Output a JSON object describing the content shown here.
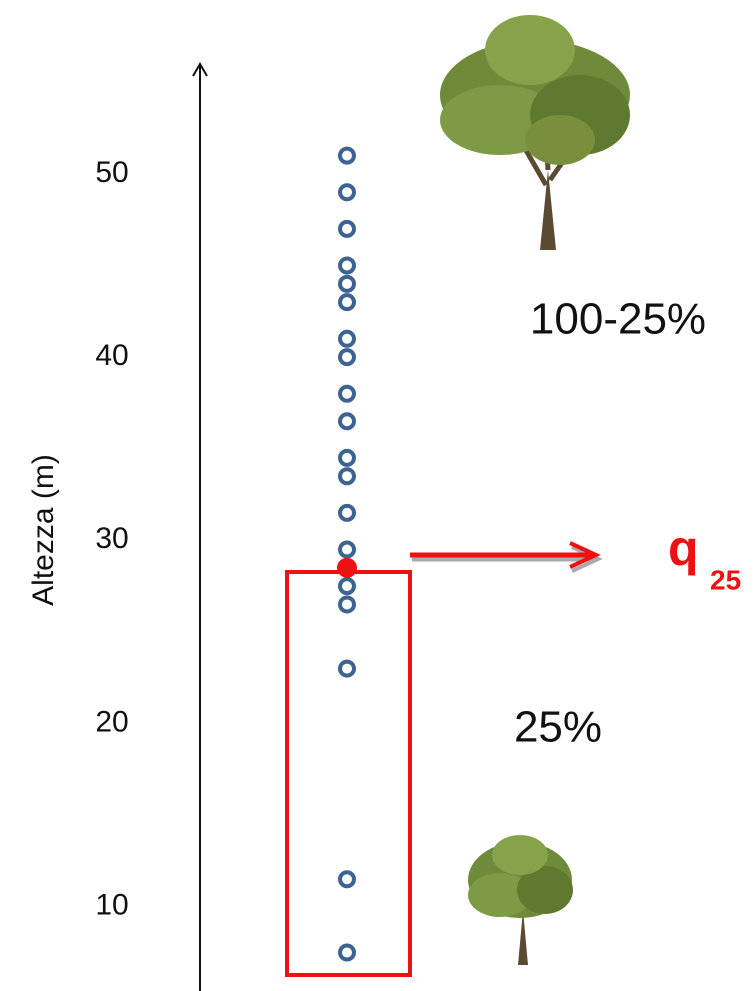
{
  "chart_data": {
    "type": "strip",
    "y_label": "Altezza (m)",
    "values": [
      51,
      49,
      47,
      45,
      44,
      43,
      41,
      40,
      38,
      36.5,
      34.5,
      33.5,
      31.5,
      29.5,
      27.5,
      26.5,
      23,
      11.5,
      7.5
    ],
    "color": "#3d6391",
    "quantile": {
      "label": "q",
      "subscript": "25",
      "value": 28.5,
      "color": "#ee1111"
    },
    "annotations": [
      "100-25%",
      "25%"
    ],
    "ylim": [
      5.4,
      56
    ],
    "yticks": [
      10,
      20,
      30,
      40,
      50
    ]
  }
}
